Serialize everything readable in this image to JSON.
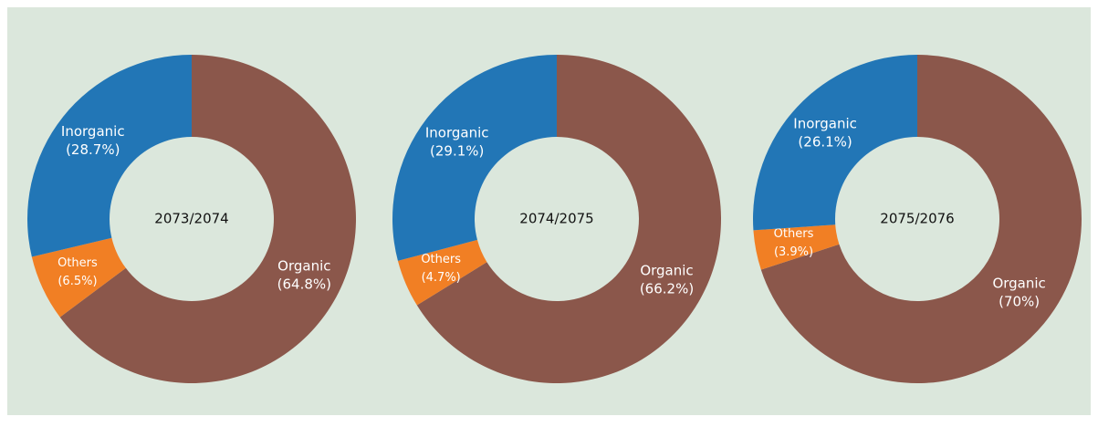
{
  "chart_data": [
    {
      "type": "pie",
      "title": "2073/2074",
      "categories": [
        "Organic",
        "Others",
        "Inorganic"
      ],
      "values": [
        64.8,
        6.5,
        28.7
      ],
      "value_labels": [
        "(64.8%)",
        "(6.5%)",
        "(28.7%)"
      ],
      "colors": [
        "#8b574b",
        "#f17f24",
        "#2276b6"
      ]
    },
    {
      "type": "pie",
      "title": "2074/2075",
      "categories": [
        "Organic",
        "Others",
        "Inorganic"
      ],
      "values": [
        66.2,
        4.7,
        29.1
      ],
      "value_labels": [
        "(66.2%)",
        "(4.7%)",
        "(29.1%)"
      ],
      "colors": [
        "#8b574b",
        "#f17f24",
        "#2276b6"
      ]
    },
    {
      "type": "pie",
      "title": "2075/2076",
      "categories": [
        "Organic",
        "Others",
        "Inorganic"
      ],
      "values": [
        70,
        3.9,
        26.1
      ],
      "value_labels": [
        "(70%)",
        "(3.9%)",
        "(26.1%)"
      ],
      "colors": [
        "#8b574b",
        "#f17f24",
        "#2276b6"
      ]
    }
  ]
}
